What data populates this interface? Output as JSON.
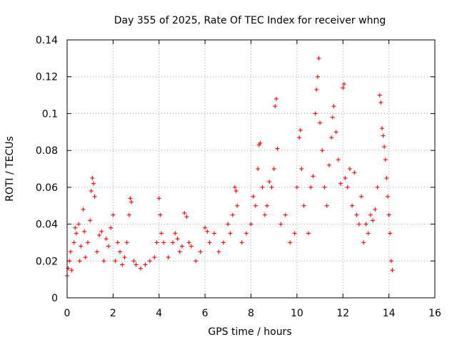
{
  "chart_data": {
    "type": "scatter",
    "title": "Day 355 of 2025, Rate Of TEC Index for receiver whng",
    "xlabel": "GPS time / hours",
    "ylabel": "ROTI / TECUs",
    "xlim": [
      0,
      16
    ],
    "ylim": [
      0,
      0.14
    ],
    "x_ticks": [
      0,
      2,
      4,
      6,
      8,
      10,
      12,
      14,
      16
    ],
    "y_ticks": [
      0,
      0.02,
      0.04,
      0.06,
      0.08,
      0.1,
      0.12,
      0.14
    ],
    "x_tick_labels": [
      "0",
      "2",
      "4",
      "6",
      "8",
      "10",
      "12",
      "14",
      "16"
    ],
    "y_tick_labels": [
      "0",
      "0.02",
      "0.04",
      "0.06",
      "0.08",
      "0.1",
      "0.12",
      "0.14"
    ],
    "grid": true,
    "marker": "+",
    "color": "#ff0000",
    "series": [
      {
        "name": "ROTI",
        "points": [
          [
            0.0,
            0.012
          ],
          [
            0.05,
            0.016
          ],
          [
            0.1,
            0.02
          ],
          [
            0.15,
            0.025
          ],
          [
            0.2,
            0.015
          ],
          [
            0.3,
            0.03
          ],
          [
            0.35,
            0.038
          ],
          [
            0.4,
            0.035
          ],
          [
            0.5,
            0.04
          ],
          [
            0.55,
            0.02
          ],
          [
            0.6,
            0.028
          ],
          [
            0.7,
            0.048
          ],
          [
            0.75,
            0.036
          ],
          [
            0.8,
            0.022
          ],
          [
            0.9,
            0.03
          ],
          [
            1.0,
            0.042
          ],
          [
            1.05,
            0.058
          ],
          [
            1.1,
            0.065
          ],
          [
            1.15,
            0.062
          ],
          [
            1.2,
            0.055
          ],
          [
            1.3,
            0.025
          ],
          [
            1.4,
            0.034
          ],
          [
            1.5,
            0.036
          ],
          [
            1.6,
            0.02
          ],
          [
            1.7,
            0.032
          ],
          [
            1.8,
            0.028
          ],
          [
            1.9,
            0.038
          ],
          [
            2.0,
            0.045
          ],
          [
            2.1,
            0.02
          ],
          [
            2.2,
            0.03
          ],
          [
            2.3,
            0.025
          ],
          [
            2.4,
            0.018
          ],
          [
            2.5,
            0.022
          ],
          [
            2.6,
            0.03
          ],
          [
            2.7,
            0.045
          ],
          [
            2.75,
            0.054
          ],
          [
            2.8,
            0.052
          ],
          [
            2.9,
            0.02
          ],
          [
            3.0,
            0.018
          ],
          [
            3.2,
            0.016
          ],
          [
            3.4,
            0.018
          ],
          [
            3.6,
            0.02
          ],
          [
            3.8,
            0.022
          ],
          [
            3.9,
            0.03
          ],
          [
            4.0,
            0.054
          ],
          [
            4.05,
            0.045
          ],
          [
            4.1,
            0.035
          ],
          [
            4.2,
            0.03
          ],
          [
            4.4,
            0.022
          ],
          [
            4.6,
            0.03
          ],
          [
            4.7,
            0.035
          ],
          [
            4.8,
            0.032
          ],
          [
            4.9,
            0.025
          ],
          [
            5.0,
            0.028
          ],
          [
            5.1,
            0.046
          ],
          [
            5.2,
            0.044
          ],
          [
            5.3,
            0.03
          ],
          [
            5.4,
            0.028
          ],
          [
            5.6,
            0.02
          ],
          [
            5.8,
            0.025
          ],
          [
            6.0,
            0.038
          ],
          [
            6.1,
            0.036
          ],
          [
            6.2,
            0.03
          ],
          [
            6.4,
            0.035
          ],
          [
            6.6,
            0.025
          ],
          [
            6.8,
            0.03
          ],
          [
            7.0,
            0.04
          ],
          [
            7.1,
            0.035
          ],
          [
            7.2,
            0.045
          ],
          [
            7.3,
            0.06
          ],
          [
            7.35,
            0.058
          ],
          [
            7.4,
            0.05
          ],
          [
            7.6,
            0.03
          ],
          [
            7.8,
            0.035
          ],
          [
            8.0,
            0.04
          ],
          [
            8.1,
            0.055
          ],
          [
            8.2,
            0.05
          ],
          [
            8.3,
            0.07
          ],
          [
            8.35,
            0.083
          ],
          [
            8.4,
            0.084
          ],
          [
            8.5,
            0.06
          ],
          [
            8.6,
            0.045
          ],
          [
            8.7,
            0.05
          ],
          [
            8.8,
            0.063
          ],
          [
            8.9,
            0.06
          ],
          [
            9.0,
            0.07
          ],
          [
            9.05,
            0.104
          ],
          [
            9.1,
            0.108
          ],
          [
            9.15,
            0.081
          ],
          [
            9.3,
            0.04
          ],
          [
            9.5,
            0.045
          ],
          [
            9.7,
            0.03
          ],
          [
            9.9,
            0.035
          ],
          [
            10.0,
            0.06
          ],
          [
            10.1,
            0.087
          ],
          [
            10.15,
            0.091
          ],
          [
            10.2,
            0.07
          ],
          [
            10.3,
            0.05
          ],
          [
            10.5,
            0.035
          ],
          [
            10.6,
            0.06
          ],
          [
            10.7,
            0.066
          ],
          [
            10.8,
            0.1
          ],
          [
            10.85,
            0.113
          ],
          [
            10.9,
            0.12
          ],
          [
            10.95,
            0.13
          ],
          [
            11.0,
            0.095
          ],
          [
            11.1,
            0.08
          ],
          [
            11.2,
            0.06
          ],
          [
            11.3,
            0.05
          ],
          [
            11.4,
            0.072
          ],
          [
            11.5,
            0.087
          ],
          [
            11.55,
            0.098
          ],
          [
            11.6,
            0.104
          ],
          [
            11.7,
            0.09
          ],
          [
            11.8,
            0.075
          ],
          [
            11.9,
            0.062
          ],
          [
            12.0,
            0.114
          ],
          [
            12.05,
            0.116
          ],
          [
            12.1,
            0.065
          ],
          [
            12.2,
            0.06
          ],
          [
            12.3,
            0.07
          ],
          [
            12.4,
            0.05
          ],
          [
            12.5,
            0.068
          ],
          [
            12.6,
            0.045
          ],
          [
            12.7,
            0.04
          ],
          [
            12.8,
            0.055
          ],
          [
            12.9,
            0.03
          ],
          [
            13.0,
            0.04
          ],
          [
            13.1,
            0.035
          ],
          [
            13.2,
            0.045
          ],
          [
            13.3,
            0.042
          ],
          [
            13.4,
            0.048
          ],
          [
            13.5,
            0.06
          ],
          [
            13.6,
            0.11
          ],
          [
            13.65,
            0.106
          ],
          [
            13.7,
            0.092
          ],
          [
            13.75,
            0.088
          ],
          [
            13.8,
            0.082
          ],
          [
            13.85,
            0.075
          ],
          [
            13.9,
            0.065
          ],
          [
            13.95,
            0.055
          ],
          [
            14.0,
            0.045
          ],
          [
            14.05,
            0.035
          ],
          [
            14.1,
            0.02
          ],
          [
            14.15,
            0.015
          ]
        ]
      }
    ]
  }
}
